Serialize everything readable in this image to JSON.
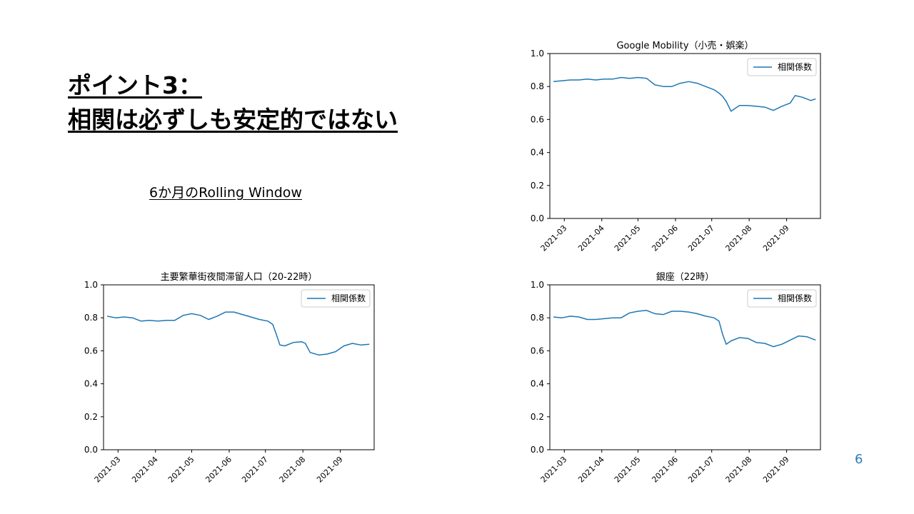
{
  "slide": {
    "title_line1": "ポイント3：",
    "title_line2": "相関は必ずしも安定的ではない",
    "subtitle": "6か月のRolling Window",
    "page_number": "6"
  },
  "colors": {
    "line": "#1f77b4",
    "axis": "#000000",
    "accent": "#2b7bb9"
  },
  "chart_data": [
    {
      "type": "line",
      "title": "Google Mobility（小売・娯楽）",
      "legend": "top-right",
      "grid": false,
      "ylim": [
        0,
        1
      ],
      "yticks": [
        "0.0",
        "0.2",
        "0.4",
        "0.6",
        "0.8",
        "1.0"
      ],
      "xticks": [
        "2021-03",
        "2021-04",
        "2021-05",
        "2021-06",
        "2021-07",
        "2021-08",
        "2021-09"
      ],
      "series": [
        {
          "name": "相関係数",
          "x": [
            "2021-02-20",
            "2021-02-27",
            "2021-03-06",
            "2021-03-13",
            "2021-03-20",
            "2021-03-27",
            "2021-04-03",
            "2021-04-10",
            "2021-04-17",
            "2021-04-24",
            "2021-05-01",
            "2021-05-08",
            "2021-05-15",
            "2021-05-22",
            "2021-05-29",
            "2021-06-05",
            "2021-06-12",
            "2021-06-19",
            "2021-06-26",
            "2021-07-03",
            "2021-07-07",
            "2021-07-10",
            "2021-07-13",
            "2021-07-17",
            "2021-07-24",
            "2021-07-31",
            "2021-08-07",
            "2021-08-14",
            "2021-08-21",
            "2021-08-28",
            "2021-09-04",
            "2021-09-08",
            "2021-09-14",
            "2021-09-21",
            "2021-09-25"
          ],
          "y": [
            0.83,
            0.835,
            0.84,
            0.84,
            0.845,
            0.84,
            0.845,
            0.845,
            0.855,
            0.85,
            0.855,
            0.85,
            0.81,
            0.8,
            0.8,
            0.82,
            0.83,
            0.82,
            0.8,
            0.78,
            0.76,
            0.74,
            0.71,
            0.65,
            0.685,
            0.685,
            0.68,
            0.675,
            0.655,
            0.68,
            0.7,
            0.745,
            0.735,
            0.715,
            0.725
          ]
        }
      ]
    },
    {
      "type": "line",
      "title": "主要繁華街夜間滞留人口（20-22時）",
      "legend": "top-right",
      "grid": false,
      "ylim": [
        0,
        1
      ],
      "yticks": [
        "0.0",
        "0.2",
        "0.4",
        "0.6",
        "0.8",
        "1.0"
      ],
      "xticks": [
        "2021-03",
        "2021-04",
        "2021-05",
        "2021-06",
        "2021-07",
        "2021-08",
        "2021-09"
      ],
      "series": [
        {
          "name": "相関係数",
          "x": [
            "2021-02-20",
            "2021-02-27",
            "2021-03-06",
            "2021-03-13",
            "2021-03-20",
            "2021-03-27",
            "2021-04-03",
            "2021-04-10",
            "2021-04-17",
            "2021-04-24",
            "2021-05-01",
            "2021-05-08",
            "2021-05-15",
            "2021-05-22",
            "2021-05-29",
            "2021-06-05",
            "2021-06-12",
            "2021-06-19",
            "2021-06-26",
            "2021-07-03",
            "2021-07-07",
            "2021-07-10",
            "2021-07-13",
            "2021-07-17",
            "2021-07-24",
            "2021-07-31",
            "2021-08-03",
            "2021-08-07",
            "2021-08-14",
            "2021-08-21",
            "2021-08-28",
            "2021-09-04",
            "2021-09-11",
            "2021-09-18",
            "2021-09-25"
          ],
          "y": [
            0.81,
            0.8,
            0.805,
            0.8,
            0.78,
            0.785,
            0.78,
            0.785,
            0.785,
            0.815,
            0.825,
            0.815,
            0.79,
            0.81,
            0.835,
            0.835,
            0.82,
            0.805,
            0.79,
            0.78,
            0.76,
            0.7,
            0.635,
            0.63,
            0.65,
            0.655,
            0.645,
            0.59,
            0.575,
            0.58,
            0.595,
            0.63,
            0.645,
            0.635,
            0.64
          ]
        }
      ]
    },
    {
      "type": "line",
      "title": "銀座（22時）",
      "legend": "top-right",
      "grid": false,
      "ylim": [
        0,
        1
      ],
      "yticks": [
        "0.0",
        "0.2",
        "0.4",
        "0.6",
        "0.8",
        "1.0"
      ],
      "xticks": [
        "2021-03",
        "2021-04",
        "2021-05",
        "2021-06",
        "2021-07",
        "2021-08",
        "2021-09"
      ],
      "series": [
        {
          "name": "相関係数",
          "x": [
            "2021-02-20",
            "2021-02-27",
            "2021-03-06",
            "2021-03-13",
            "2021-03-20",
            "2021-03-27",
            "2021-04-03",
            "2021-04-10",
            "2021-04-17",
            "2021-04-24",
            "2021-05-01",
            "2021-05-08",
            "2021-05-15",
            "2021-05-22",
            "2021-05-29",
            "2021-06-05",
            "2021-06-12",
            "2021-06-19",
            "2021-06-26",
            "2021-07-03",
            "2021-07-07",
            "2021-07-10",
            "2021-07-13",
            "2021-07-17",
            "2021-07-24",
            "2021-07-31",
            "2021-08-07",
            "2021-08-14",
            "2021-08-21",
            "2021-08-28",
            "2021-09-04",
            "2021-09-11",
            "2021-09-18",
            "2021-09-25"
          ],
          "y": [
            0.805,
            0.8,
            0.81,
            0.805,
            0.79,
            0.79,
            0.795,
            0.8,
            0.8,
            0.83,
            0.84,
            0.845,
            0.825,
            0.82,
            0.84,
            0.84,
            0.835,
            0.825,
            0.81,
            0.8,
            0.78,
            0.7,
            0.64,
            0.66,
            0.68,
            0.675,
            0.65,
            0.645,
            0.625,
            0.64,
            0.665,
            0.69,
            0.685,
            0.665
          ]
        }
      ]
    }
  ]
}
